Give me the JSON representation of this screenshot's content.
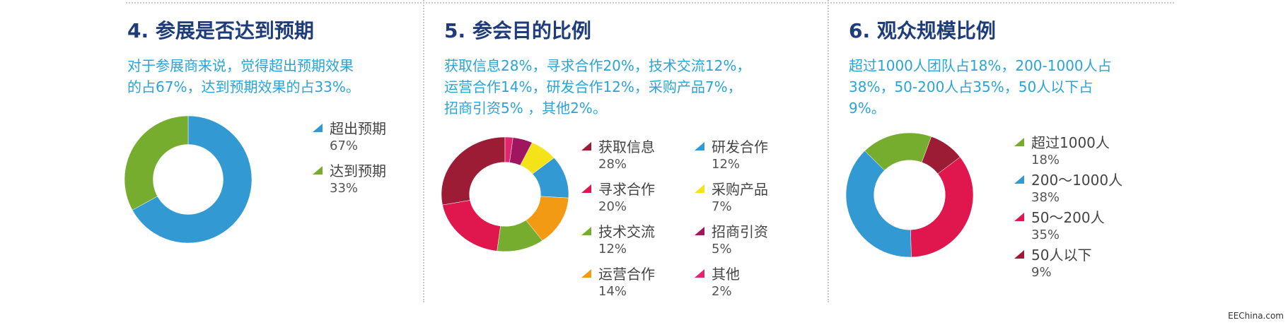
{
  "panels": [
    {
      "title": "4. 参展是否达到预期",
      "desc": [
        "对于参展商来说，觉得超出预期效果",
        "的占67%，达到预期效果的占33%。"
      ]
    },
    {
      "title": "5. 参会目的比例",
      "desc": [
        "获取信息28%，寻求合作20%，技术交流12%，",
        "运营合作14%，研发合作12%，采购产品7%，",
        "招商引资5% ，其他2%。"
      ]
    },
    {
      "title": "6. 观众规模比例",
      "desc": [
        "超过1000人团队占18%，200-1000人占",
        "38%，50-200人占35%，50人以下占",
        "9%。"
      ]
    }
  ],
  "chart_data": [
    {
      "type": "pie",
      "donut": true,
      "categories": [
        "超出预期",
        "达到预期"
      ],
      "values": [
        67,
        33
      ],
      "value_labels": [
        "67%",
        "33%"
      ],
      "colors": [
        "#3399d3",
        "#77ad2f"
      ]
    },
    {
      "type": "pie",
      "donut": true,
      "categories": [
        "获取信息",
        "寻求合作",
        "技术交流",
        "运营合作",
        "研发合作",
        "采购产品",
        "招商引资",
        "其他"
      ],
      "values": [
        28,
        20,
        12,
        14,
        12,
        7,
        5,
        2
      ],
      "value_labels": [
        "28%",
        "20%",
        "12%",
        "14%",
        "12%",
        "7%",
        "5%",
        "2%"
      ],
      "colors": [
        "#9b1c34",
        "#e0174f",
        "#77ad2f",
        "#f39a14",
        "#3399d3",
        "#f5e31a",
        "#a01560",
        "#e2256f"
      ]
    },
    {
      "type": "pie",
      "donut": true,
      "categories": [
        "超过1000人",
        "200～1000人",
        "50～200人",
        "50人以下"
      ],
      "values": [
        18,
        38,
        35,
        9
      ],
      "value_labels": [
        "18%",
        "38%",
        "35%",
        "9%"
      ],
      "colors": [
        "#77ad2f",
        "#3399d3",
        "#e0174f",
        "#9b1c34"
      ]
    }
  ],
  "watermark": "EEChina.com"
}
